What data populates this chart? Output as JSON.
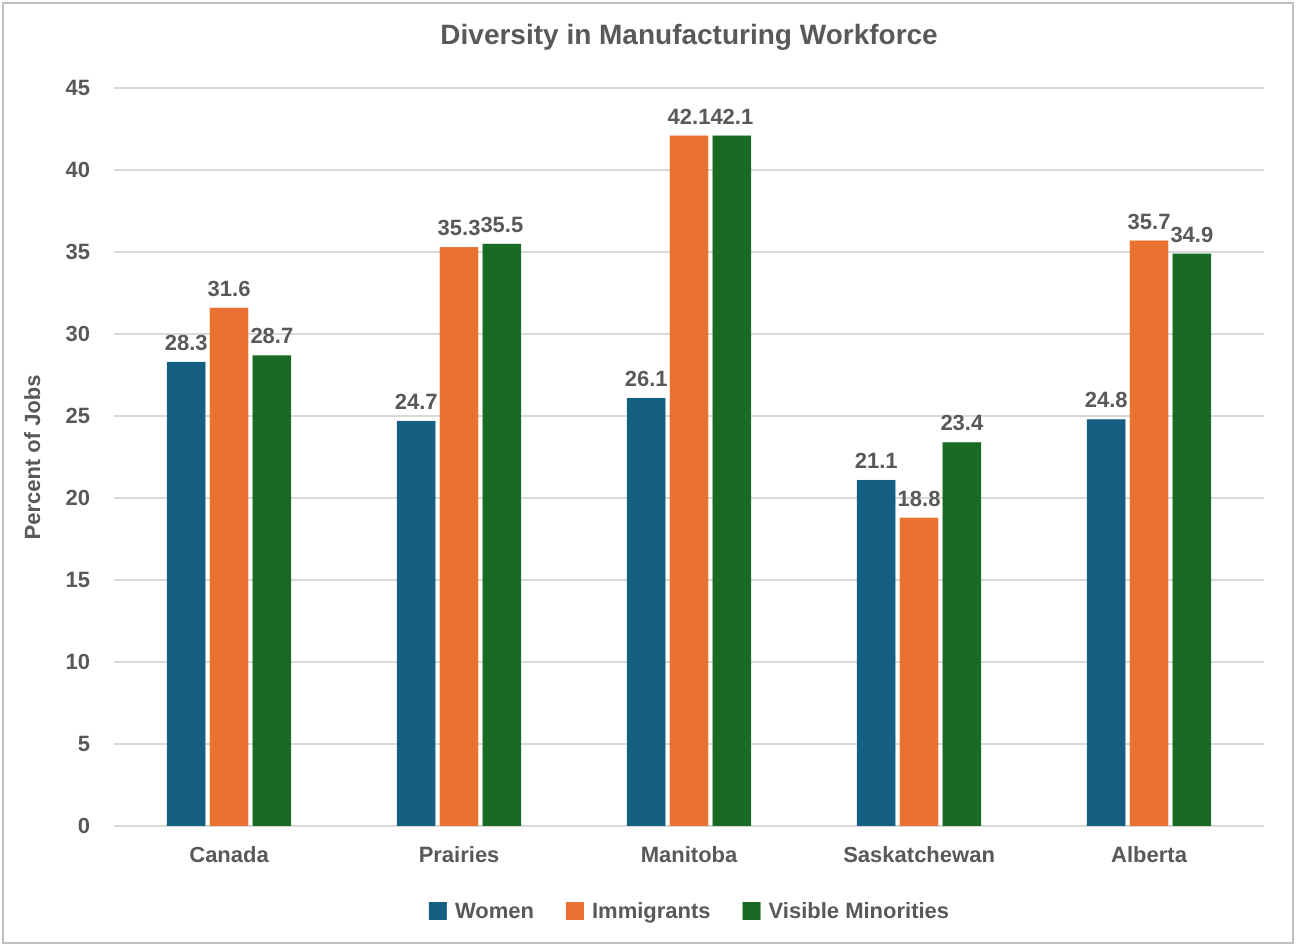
{
  "chart_data": {
    "type": "bar",
    "title": "Diversity in Manufacturing Workforce",
    "ylabel": "Percent of Jobs",
    "categories": [
      "Canada",
      "Prairies",
      "Manitoba",
      "Saskatchewan",
      "Alberta"
    ],
    "series": [
      {
        "name": "Women",
        "color": "#156082",
        "values": [
          28.3,
          24.7,
          26.1,
          21.1,
          24.8
        ]
      },
      {
        "name": "Immigrants",
        "color": "#e97132",
        "values": [
          31.6,
          35.3,
          42.1,
          18.8,
          35.7
        ]
      },
      {
        "name": "Visible Minorities",
        "color": "#196b24",
        "values": [
          28.7,
          35.5,
          42.1,
          23.4,
          34.9
        ]
      }
    ],
    "ylim": [
      0,
      45
    ],
    "yticks": [
      0,
      5,
      10,
      15,
      20,
      25,
      30,
      35,
      40,
      45
    ],
    "grid": "y",
    "legend": "bottom",
    "data_labels": true
  }
}
